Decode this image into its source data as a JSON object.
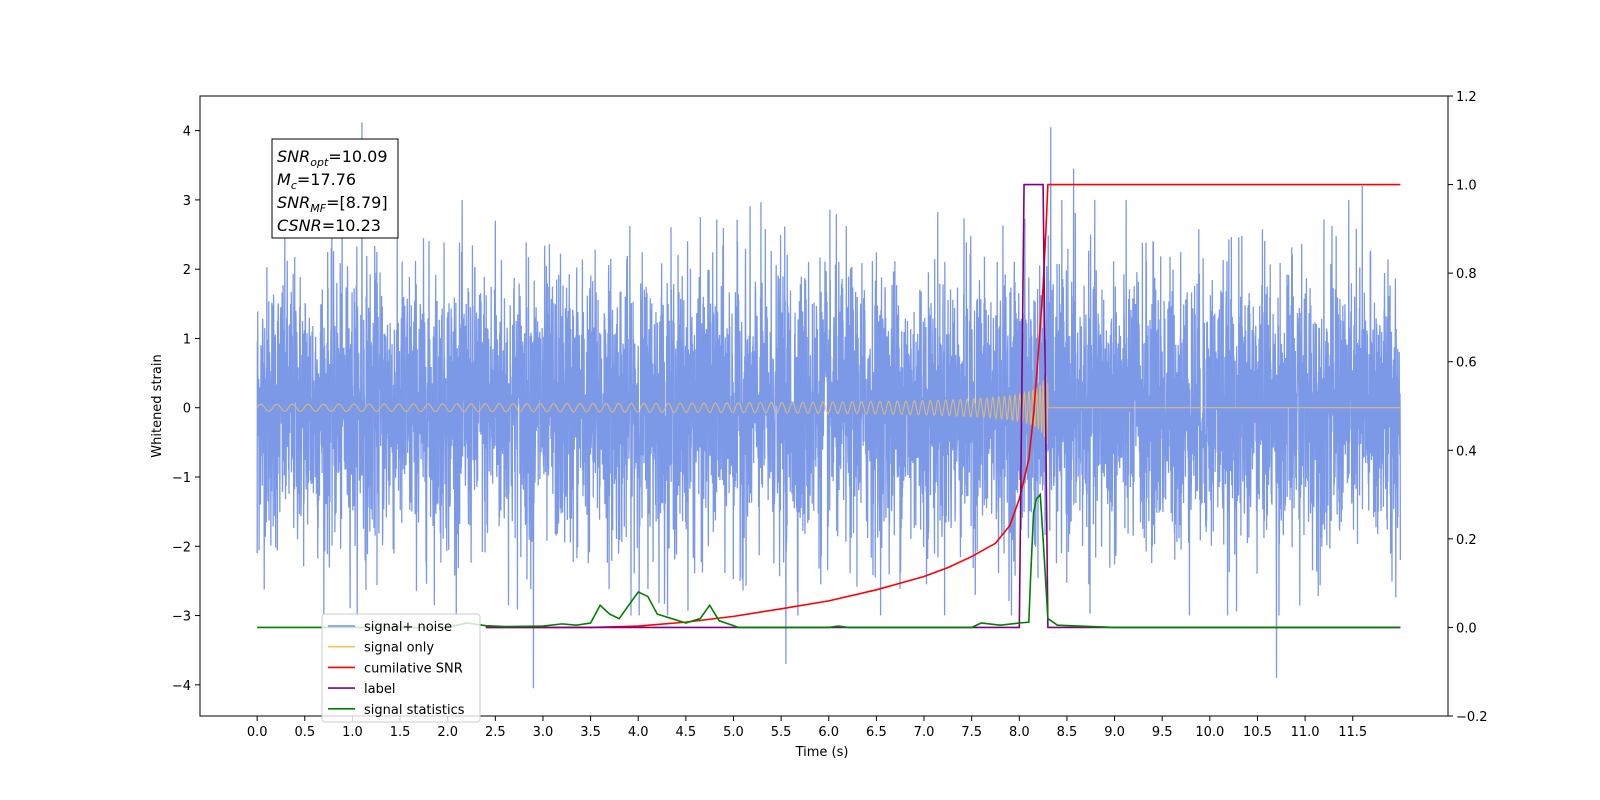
{
  "chart_data": {
    "type": "line",
    "xlabel": "Time (s)",
    "ylabel_left": "Whitened strain",
    "ylabel_right": "",
    "xlim": [
      -0.6,
      12.5
    ],
    "ylim_left": [
      -4.45,
      4.5
    ],
    "ylim_right": [
      -0.2,
      1.2
    ],
    "x_ticks": [
      "0.0",
      "0.5",
      "1.0",
      "1.5",
      "2.0",
      "2.5",
      "3.0",
      "3.5",
      "4.0",
      "4.5",
      "5.0",
      "5.5",
      "6.0",
      "6.5",
      "7.0",
      "7.5",
      "8.0",
      "8.5",
      "9.0",
      "9.5",
      "10.0",
      "10.5",
      "11.0",
      "11.5"
    ],
    "y_ticks_left": [
      "4",
      "3",
      "2",
      "1",
      "0",
      "−1",
      "−2",
      "−3",
      "−4"
    ],
    "y_ticks_right": [
      "1.2",
      "1.0",
      "0.8",
      "0.6",
      "0.4",
      "0.2",
      "0.0",
      "−0.2"
    ],
    "grid": false,
    "legend_position": "lower-left",
    "annotation": {
      "lines": [
        {
          "base": "SNR",
          "sub": "opt",
          "value": "=10.09"
        },
        {
          "base": "M",
          "sub": "c",
          "value": "=17.76"
        },
        {
          "base": "SNR",
          "sub": "MF",
          "value": "=[8.79]"
        },
        {
          "base": "CSNR",
          "sub": "",
          "value": "=10.23"
        }
      ]
    },
    "series": [
      {
        "name": "signal+ noise",
        "axis": "left",
        "color": "#7593e6",
        "description_values": {
          "x_range": [
            0.0,
            12.0
          ],
          "typical_amplitude": 1.0,
          "envelope_upper": [
            [
              0.0,
              2.4
            ],
            [
              1.1,
              4.12
            ],
            [
              2.5,
              2.7
            ],
            [
              8.33,
              4.05
            ],
            [
              8.57,
              3.45
            ],
            [
              11.6,
              3.2
            ],
            [
              12.0,
              2.5
            ]
          ],
          "envelope_lower": [
            [
              0.0,
              -2.1
            ],
            [
              2.9,
              -4.05
            ],
            [
              5.55,
              -3.7
            ],
            [
              10.7,
              -3.9
            ],
            [
              12.0,
              -2.2
            ]
          ]
        }
      },
      {
        "name": "signal only",
        "axis": "left",
        "color": "#f6c35e",
        "chirp": {
          "t_merger": 8.3,
          "amplitude_at_merger": 0.58,
          "amplitude_at_start": 0.02,
          "freq_start": 6,
          "freq_end": 90
        }
      },
      {
        "name": "cumilative SNR",
        "axis": "right",
        "color": "#ff0000",
        "x": [
          2.4,
          3.5,
          4.0,
          4.5,
          5.0,
          5.5,
          6.0,
          6.5,
          7.0,
          7.25,
          7.5,
          7.75,
          7.9,
          8.0,
          8.1,
          8.15,
          8.2,
          8.25,
          8.28,
          8.3,
          12.0
        ],
        "y": [
          0.0,
          0.0,
          0.003,
          0.012,
          0.025,
          0.042,
          0.06,
          0.085,
          0.115,
          0.135,
          0.16,
          0.19,
          0.23,
          0.29,
          0.38,
          0.48,
          0.62,
          0.77,
          0.9,
          1.0,
          1.0
        ]
      },
      {
        "name": "label",
        "axis": "right",
        "color": "#800080",
        "x": [
          2.4,
          8.0,
          8.05,
          8.25,
          8.3,
          12.0
        ],
        "y": [
          0.0,
          0.0,
          1.0,
          1.0,
          0.0,
          0.0
        ]
      },
      {
        "name": "signal statistics",
        "axis": "right",
        "color": "#008000",
        "x": [
          0.0,
          2.0,
          2.2,
          2.4,
          2.6,
          3.0,
          3.2,
          3.35,
          3.5,
          3.6,
          3.7,
          3.8,
          3.9,
          4.0,
          4.1,
          4.2,
          4.35,
          4.5,
          4.65,
          4.75,
          4.85,
          5.0,
          5.05,
          5.5,
          6.0,
          6.1,
          6.2,
          7.0,
          7.5,
          7.6,
          7.8,
          8.0,
          8.1,
          8.12,
          8.15,
          8.18,
          8.22,
          8.25,
          8.3,
          8.4,
          9.0,
          12.0
        ],
        "y": [
          0.0,
          0.0,
          0.01,
          0.004,
          0.002,
          0.003,
          0.008,
          0.005,
          0.01,
          0.05,
          0.03,
          0.02,
          0.05,
          0.08,
          0.07,
          0.03,
          0.02,
          0.01,
          0.02,
          0.05,
          0.015,
          0.004,
          0.0,
          0.0,
          0.0,
          0.003,
          0.0,
          0.0,
          0.0,
          0.01,
          0.005,
          0.01,
          0.012,
          0.12,
          0.26,
          0.29,
          0.3,
          0.2,
          0.02,
          0.005,
          0.0,
          0.0
        ]
      }
    ]
  }
}
